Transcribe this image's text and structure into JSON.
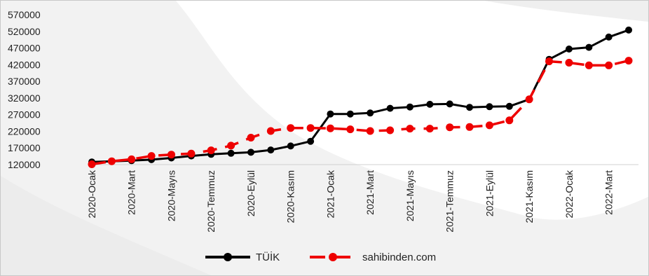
{
  "chart_data": {
    "type": "line",
    "title": "",
    "xlabel": "",
    "ylabel": "",
    "ylim": [
      120000,
      570000
    ],
    "yticks": [
      120000,
      170000,
      220000,
      270000,
      320000,
      370000,
      420000,
      470000,
      520000,
      570000
    ],
    "x": [
      "2020-Ocak",
      "2020-Şubat",
      "2020-Mart",
      "2020-Nisan",
      "2020-Mayıs",
      "2020-Haziran",
      "2020-Temmuz",
      "2020-Ağustos",
      "2020-Eylül",
      "2020-Ekim",
      "2020-Kasım",
      "2020-Aralık",
      "2021-Ocak",
      "2021-Şubat",
      "2021-Mart",
      "2021-Nisan",
      "2021-Mayıs",
      "2021-Haziran",
      "2021-Temmuz",
      "2021-Ağustos",
      "2021-Eylül",
      "2021-Ekim",
      "2021-Kasım",
      "2021-Aralık",
      "2022-Ocak",
      "2022-Şubat",
      "2022-Mart",
      "2022-Nisan"
    ],
    "xtick_labels": [
      "2020-Ocak",
      "2020-Mart",
      "2020-Mayıs",
      "2020-Temmuz",
      "2020-Eylül",
      "2020-Kasım",
      "2021-Ocak",
      "2021-Mart",
      "2021-Mayıs",
      "2021-Temmuz",
      "2021-Eylül",
      "2021-Kasım",
      "2022-Ocak",
      "2022-Mart"
    ],
    "grid": false,
    "legend_position": "bottom",
    "series": [
      {
        "name": "TÜİK",
        "color": "#000000",
        "line_style": "solid",
        "values": [
          128000,
          130000,
          132000,
          135000,
          140000,
          146000,
          151000,
          154000,
          157000,
          164000,
          176000,
          190000,
          272000,
          272000,
          275000,
          289000,
          293000,
          301000,
          302000,
          292000,
          294000,
          295000,
          316000,
          436000,
          467000,
          472000,
          503000,
          524000
        ]
      },
      {
        "name": "sahibinden.com",
        "color": "#ee0000",
        "line_style": "dashed",
        "values": [
          121000,
          130000,
          136000,
          146000,
          150000,
          153000,
          163000,
          177000,
          201000,
          221000,
          230000,
          230000,
          229000,
          226000,
          221000,
          223000,
          228000,
          228000,
          232000,
          233000,
          238000,
          253000,
          316000,
          430000,
          426000,
          418000,
          418000,
          432000
        ]
      }
    ]
  }
}
